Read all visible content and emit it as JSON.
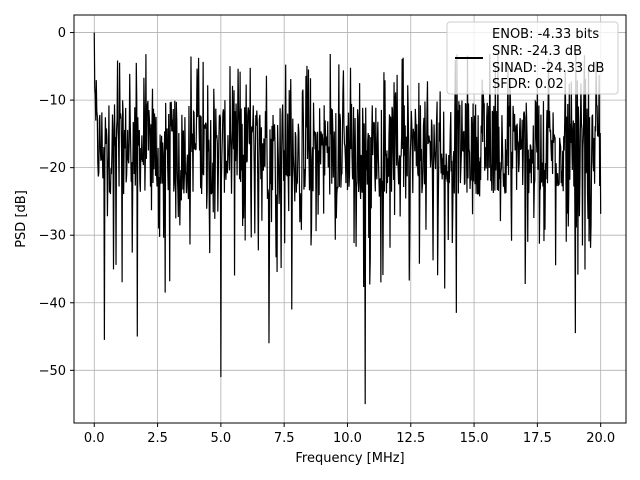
{
  "chart_data": {
    "type": "line",
    "title": "",
    "xlabel": "Frequency [MHz]",
    "ylabel": "PSD [dB]",
    "xlim": [
      -0.8,
      21.0
    ],
    "ylim": [
      -57.8,
      2.6
    ],
    "xticks": [
      0.0,
      2.5,
      5.0,
      7.5,
      10.0,
      12.5,
      15.0,
      17.5,
      20.0
    ],
    "xtick_labels": [
      "0.0",
      "2.5",
      "5.0",
      "7.5",
      "10.0",
      "12.5",
      "15.0",
      "17.5",
      "20.0"
    ],
    "yticks": [
      0,
      -10,
      -20,
      -30,
      -40,
      -50
    ],
    "ytick_labels": [
      "0",
      "−10",
      "−20",
      "−30",
      "−40",
      "−50"
    ],
    "grid": true,
    "legend_position": "top-right",
    "legend": [
      "ENOB: -4.33 bits",
      "SNR: -24.3 dB",
      "SINAD: -24.33 dB",
      "SFDR: 0.02"
    ],
    "series": [
      {
        "color": "#000000",
        "x_range": [
          0.0,
          20.0
        ],
        "n_points": 1001,
        "peak": {
          "x": 0.0,
          "y": 0.0
        },
        "noise_floor_median": -17,
        "spikes_down": [
          {
            "x": 0.4,
            "y": -45.5
          },
          {
            "x": 1.7,
            "y": -45.0
          },
          {
            "x": 2.8,
            "y": -38.5
          },
          {
            "x": 5.0,
            "y": -51.0
          },
          {
            "x": 6.9,
            "y": -46.0
          },
          {
            "x": 7.8,
            "y": -41.0
          },
          {
            "x": 10.7,
            "y": -55.0
          },
          {
            "x": 14.3,
            "y": -41.5
          },
          {
            "x": 19.0,
            "y": -44.5
          }
        ]
      }
    ]
  }
}
